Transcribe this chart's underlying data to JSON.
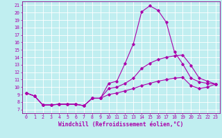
{
  "xlabel": "Windchill (Refroidissement éolien,°C)",
  "xlim": [
    -0.5,
    23.5
  ],
  "ylim": [
    6.5,
    21.5
  ],
  "xticks": [
    0,
    1,
    2,
    3,
    4,
    5,
    6,
    7,
    8,
    9,
    10,
    11,
    12,
    13,
    14,
    15,
    16,
    17,
    18,
    19,
    20,
    21,
    22,
    23
  ],
  "yticks": [
    7,
    8,
    9,
    10,
    11,
    12,
    13,
    14,
    15,
    16,
    17,
    18,
    19,
    20,
    21
  ],
  "bg_color": "#c0eef0",
  "line_color": "#aa00aa",
  "grid_color": "#ffffff",
  "line1_y": [
    9.2,
    8.8,
    7.6,
    7.6,
    7.7,
    7.7,
    7.7,
    7.5,
    8.5,
    8.5,
    10.5,
    10.8,
    13.2,
    15.8,
    20.1,
    20.9,
    20.3,
    18.7,
    14.7,
    13.1,
    11.2,
    10.7,
    10.5,
    10.4
  ],
  "line2_y": [
    9.2,
    8.8,
    7.6,
    7.6,
    7.7,
    7.7,
    7.7,
    7.5,
    8.5,
    8.5,
    9.8,
    10.0,
    10.5,
    11.2,
    12.5,
    13.2,
    13.7,
    14.0,
    14.2,
    14.3,
    12.9,
    11.2,
    10.8,
    10.4
  ],
  "line3_y": [
    9.2,
    8.8,
    7.6,
    7.6,
    7.7,
    7.7,
    7.7,
    7.5,
    8.5,
    8.5,
    9.0,
    9.2,
    9.5,
    9.8,
    10.2,
    10.5,
    10.8,
    11.0,
    11.2,
    11.3,
    10.2,
    9.8,
    10.0,
    10.4
  ],
  "markersize": 1.8,
  "linewidth": 0.8,
  "tick_fontsize": 4.8,
  "xlabel_fontsize": 5.8,
  "spine_color": "#880088"
}
